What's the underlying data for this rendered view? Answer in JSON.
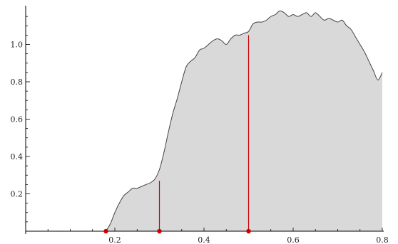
{
  "chart_data": {
    "type": "area",
    "title": "",
    "xlabel": "",
    "ylabel": "",
    "xlim": [
      0,
      0.8
    ],
    "ylim": [
      0,
      1.2
    ],
    "grid": false,
    "legend": "none",
    "x_ticks": [
      0.2,
      0.4,
      0.6,
      0.8
    ],
    "x_tick_labels": [
      "0.2",
      "0.4",
      "0.6",
      "0.8"
    ],
    "y_ticks": [
      0.2,
      0.4,
      0.6,
      0.8,
      1.0
    ],
    "y_tick_labels": [
      "0.2",
      "0.4",
      "0.6",
      "0.8",
      "1.0"
    ],
    "series": [
      {
        "fill_color": "#d9d9d9",
        "line_color": "#444444",
        "x": [
          0.18,
          0.19,
          0.2,
          0.21,
          0.22,
          0.23,
          0.24,
          0.25,
          0.26,
          0.27,
          0.28,
          0.29,
          0.3,
          0.31,
          0.32,
          0.33,
          0.34,
          0.35,
          0.36,
          0.37,
          0.38,
          0.39,
          0.4,
          0.41,
          0.42,
          0.43,
          0.44,
          0.45,
          0.46,
          0.47,
          0.48,
          0.49,
          0.5,
          0.51,
          0.52,
          0.53,
          0.54,
          0.55,
          0.56,
          0.57,
          0.58,
          0.59,
          0.6,
          0.61,
          0.62,
          0.63,
          0.64,
          0.65,
          0.66,
          0.67,
          0.68,
          0.69,
          0.7,
          0.71,
          0.72,
          0.73,
          0.74,
          0.75,
          0.76,
          0.77,
          0.78,
          0.79,
          0.8
        ],
        "y": [
          0.0,
          0.04,
          0.1,
          0.15,
          0.19,
          0.21,
          0.23,
          0.23,
          0.24,
          0.25,
          0.26,
          0.28,
          0.33,
          0.42,
          0.53,
          0.63,
          0.71,
          0.8,
          0.88,
          0.91,
          0.93,
          0.97,
          0.98,
          1.0,
          1.02,
          1.03,
          1.02,
          1.0,
          1.03,
          1.05,
          1.05,
          1.06,
          1.07,
          1.11,
          1.12,
          1.12,
          1.13,
          1.15,
          1.16,
          1.18,
          1.17,
          1.15,
          1.16,
          1.15,
          1.16,
          1.17,
          1.15,
          1.17,
          1.15,
          1.13,
          1.14,
          1.13,
          1.12,
          1.13,
          1.1,
          1.08,
          1.04,
          1.0,
          0.96,
          0.91,
          0.86,
          0.81,
          0.85
        ]
      }
    ],
    "markers": {
      "color": "#cc0000",
      "x": [
        0.18,
        0.3,
        0.5
      ],
      "lines": [
        {
          "x": 0.3,
          "y": 0.27
        },
        {
          "x": 0.5,
          "y": 1.05
        }
      ]
    }
  }
}
